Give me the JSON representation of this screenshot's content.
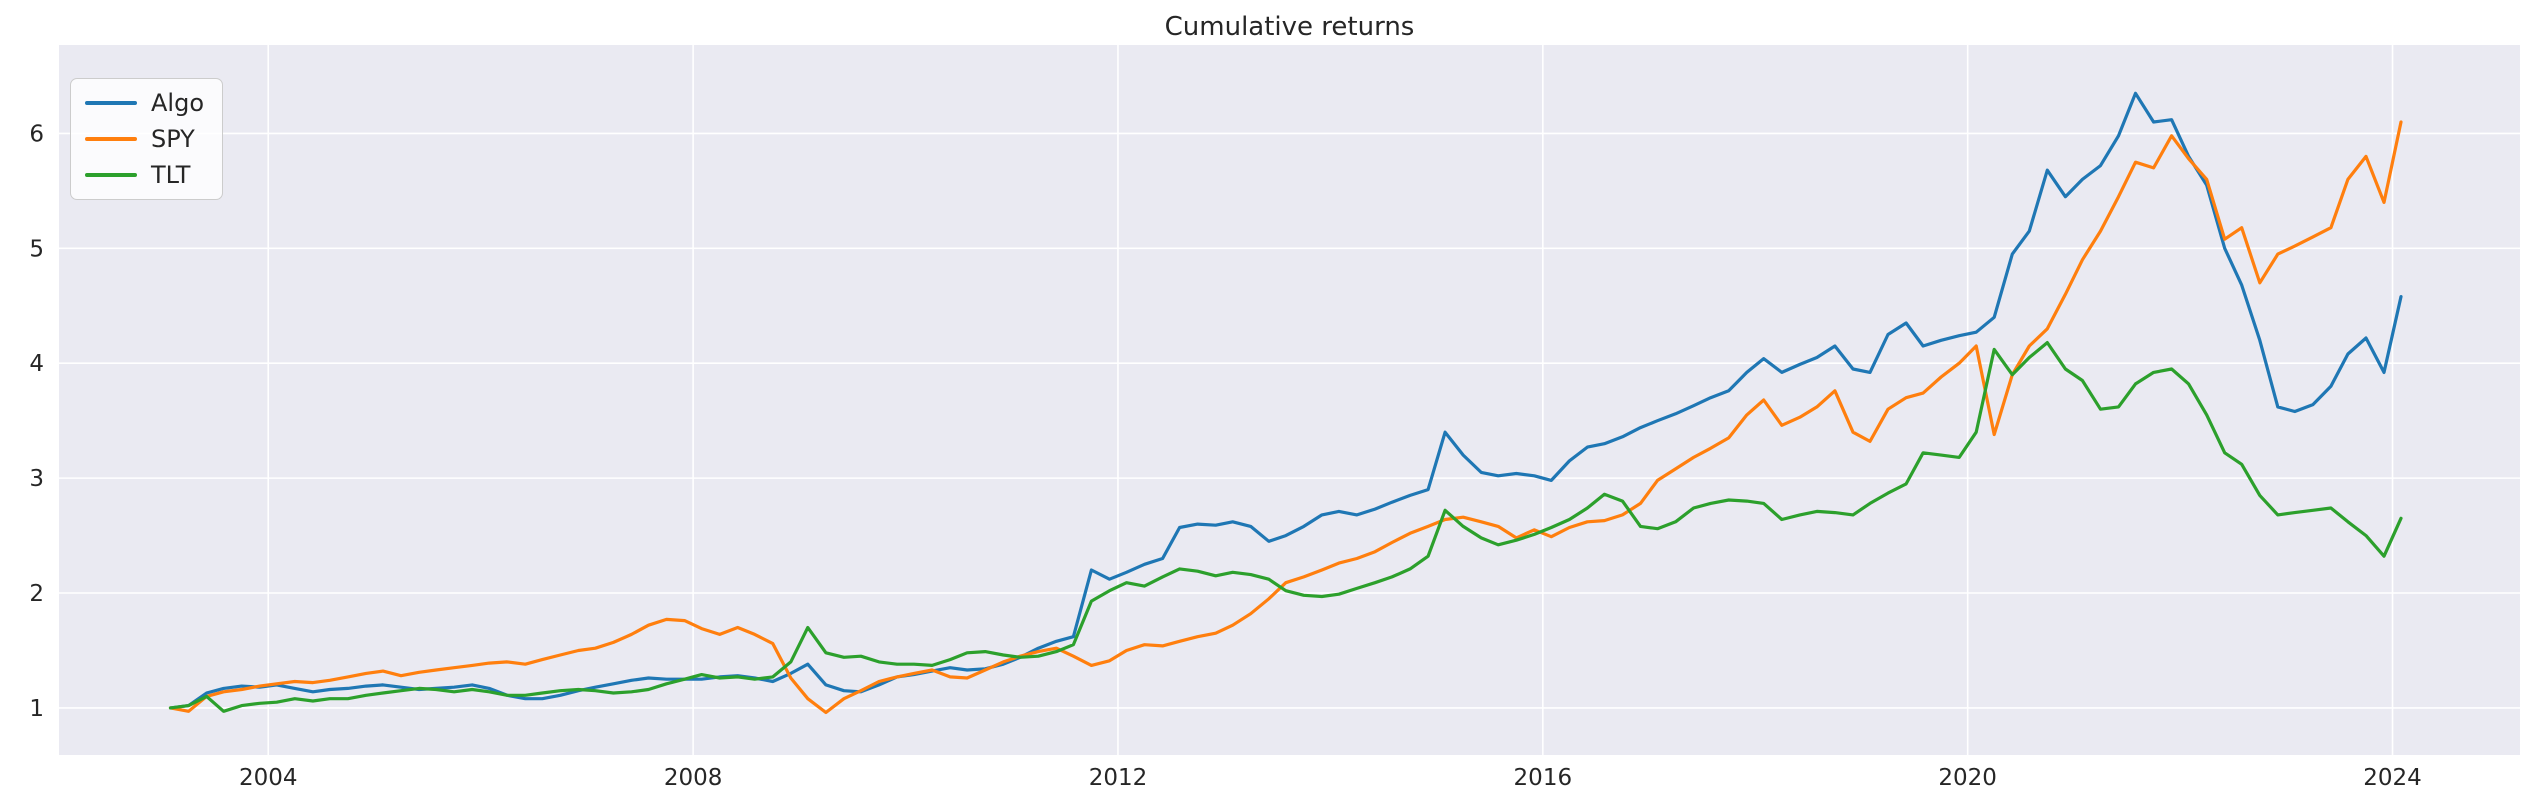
{
  "title": "Cumulative returns",
  "colors": {
    "figure_background": "#ffffff",
    "axes_background": "#eaeaf2",
    "grid": "#ffffff",
    "text": "#262626",
    "legend_border": "#cccccc",
    "algo": "#1f77b4",
    "spy": "#ff7f0e",
    "tlt": "#2ca02c"
  },
  "legend": {
    "position": "upper left",
    "entries": [
      {
        "label": "Algo",
        "color": "#1f77b4"
      },
      {
        "label": "SPY",
        "color": "#ff7f0e"
      },
      {
        "label": "TLT",
        "color": "#2ca02c"
      }
    ]
  },
  "chart_data": {
    "type": "line",
    "title": "Cumulative returns",
    "xlabel": "",
    "ylabel": "",
    "grid": true,
    "legend_position": "upper left",
    "xlim": [
      2002.03,
      2025.2
    ],
    "ylim": [
      0.59,
      6.77
    ],
    "x_ticks": [
      2004,
      2008,
      2012,
      2016,
      2020,
      2024
    ],
    "y_ticks": [
      1,
      2,
      3,
      4,
      5,
      6
    ],
    "x": [
      2003.08,
      2003.25,
      2003.42,
      2003.58,
      2003.75,
      2003.92,
      2004.08,
      2004.25,
      2004.42,
      2004.58,
      2004.75,
      2004.92,
      2005.08,
      2005.25,
      2005.42,
      2005.58,
      2005.75,
      2005.92,
      2006.08,
      2006.25,
      2006.42,
      2006.58,
      2006.75,
      2006.92,
      2007.08,
      2007.25,
      2007.42,
      2007.58,
      2007.75,
      2007.92,
      2008.08,
      2008.25,
      2008.42,
      2008.58,
      2008.75,
      2008.92,
      2009.08,
      2009.25,
      2009.42,
      2009.58,
      2009.75,
      2009.92,
      2010.08,
      2010.25,
      2010.42,
      2010.58,
      2010.75,
      2010.92,
      2011.08,
      2011.25,
      2011.42,
      2011.58,
      2011.75,
      2011.92,
      2012.08,
      2012.25,
      2012.42,
      2012.58,
      2012.75,
      2012.92,
      2013.08,
      2013.25,
      2013.42,
      2013.58,
      2013.75,
      2013.92,
      2014.08,
      2014.25,
      2014.42,
      2014.58,
      2014.75,
      2014.92,
      2015.08,
      2015.25,
      2015.42,
      2015.58,
      2015.75,
      2015.92,
      2016.08,
      2016.25,
      2016.42,
      2016.58,
      2016.75,
      2016.92,
      2017.08,
      2017.25,
      2017.42,
      2017.58,
      2017.75,
      2017.92,
      2018.08,
      2018.25,
      2018.42,
      2018.58,
      2018.75,
      2018.92,
      2019.08,
      2019.25,
      2019.42,
      2019.58,
      2019.75,
      2019.92,
      2020.08,
      2020.25,
      2020.42,
      2020.58,
      2020.75,
      2020.92,
      2021.08,
      2021.25,
      2021.42,
      2021.58,
      2021.75,
      2021.92,
      2022.08,
      2022.25,
      2022.42,
      2022.58,
      2022.75,
      2022.92,
      2023.08,
      2023.25,
      2023.42,
      2023.58,
      2023.75,
      2023.92,
      2024.08
    ],
    "series": [
      {
        "name": "Algo",
        "color": "#1f77b4",
        "values": [
          1.0,
          1.02,
          1.13,
          1.17,
          1.19,
          1.18,
          1.2,
          1.17,
          1.14,
          1.16,
          1.17,
          1.19,
          1.2,
          1.18,
          1.16,
          1.17,
          1.18,
          1.2,
          1.17,
          1.11,
          1.08,
          1.08,
          1.11,
          1.15,
          1.18,
          1.21,
          1.24,
          1.26,
          1.25,
          1.25,
          1.25,
          1.27,
          1.28,
          1.26,
          1.23,
          1.3,
          1.38,
          1.2,
          1.15,
          1.14,
          1.2,
          1.27,
          1.29,
          1.32,
          1.35,
          1.33,
          1.34,
          1.38,
          1.44,
          1.52,
          1.58,
          1.62,
          2.2,
          2.12,
          2.18,
          2.25,
          2.3,
          2.57,
          2.6,
          2.59,
          2.62,
          2.58,
          2.45,
          2.5,
          2.58,
          2.68,
          2.71,
          2.68,
          2.73,
          2.79,
          2.85,
          2.9,
          3.4,
          3.2,
          3.05,
          3.02,
          3.04,
          3.02,
          2.98,
          3.15,
          3.27,
          3.3,
          3.36,
          3.44,
          3.5,
          3.56,
          3.63,
          3.7,
          3.76,
          3.92,
          4.04,
          3.92,
          3.99,
          4.05,
          4.15,
          3.95,
          3.92,
          4.25,
          4.35,
          4.15,
          4.2,
          4.24,
          4.27,
          4.4,
          4.95,
          5.15,
          5.68,
          5.45,
          5.6,
          5.72,
          5.98,
          6.35,
          6.1,
          6.12,
          5.8,
          5.55,
          5.0,
          4.68,
          4.2,
          3.62,
          3.58,
          3.64,
          3.8,
          4.08,
          4.22,
          3.92,
          4.58
        ]
      },
      {
        "name": "SPY",
        "color": "#ff7f0e",
        "values": [
          1.0,
          0.97,
          1.1,
          1.14,
          1.16,
          1.19,
          1.21,
          1.23,
          1.22,
          1.24,
          1.27,
          1.3,
          1.32,
          1.28,
          1.31,
          1.33,
          1.35,
          1.37,
          1.39,
          1.4,
          1.38,
          1.42,
          1.46,
          1.5,
          1.52,
          1.57,
          1.64,
          1.72,
          1.77,
          1.76,
          1.69,
          1.64,
          1.7,
          1.64,
          1.56,
          1.26,
          1.08,
          0.96,
          1.08,
          1.15,
          1.23,
          1.27,
          1.3,
          1.33,
          1.27,
          1.26,
          1.33,
          1.4,
          1.45,
          1.49,
          1.52,
          1.45,
          1.37,
          1.41,
          1.5,
          1.55,
          1.54,
          1.58,
          1.62,
          1.65,
          1.72,
          1.82,
          1.95,
          2.09,
          2.14,
          2.2,
          2.26,
          2.3,
          2.36,
          2.44,
          2.52,
          2.58,
          2.64,
          2.66,
          2.62,
          2.58,
          2.48,
          2.55,
          2.49,
          2.57,
          2.62,
          2.63,
          2.68,
          2.78,
          2.98,
          3.08,
          3.18,
          3.26,
          3.35,
          3.55,
          3.68,
          3.46,
          3.53,
          3.62,
          3.76,
          3.4,
          3.32,
          3.6,
          3.7,
          3.74,
          3.88,
          4.0,
          4.15,
          3.38,
          3.9,
          4.15,
          4.3,
          4.6,
          4.9,
          5.15,
          5.45,
          5.75,
          5.7,
          5.98,
          5.78,
          5.6,
          5.08,
          5.18,
          4.7,
          4.95,
          5.02,
          5.1,
          5.18,
          5.6,
          5.8,
          5.4,
          6.1
        ]
      },
      {
        "name": "TLT",
        "color": "#2ca02c",
        "values": [
          1.0,
          1.02,
          1.1,
          0.97,
          1.02,
          1.04,
          1.05,
          1.08,
          1.06,
          1.08,
          1.08,
          1.11,
          1.13,
          1.15,
          1.17,
          1.16,
          1.14,
          1.16,
          1.14,
          1.11,
          1.11,
          1.13,
          1.15,
          1.16,
          1.15,
          1.13,
          1.14,
          1.16,
          1.21,
          1.25,
          1.29,
          1.26,
          1.27,
          1.25,
          1.27,
          1.4,
          1.7,
          1.48,
          1.44,
          1.45,
          1.4,
          1.38,
          1.38,
          1.37,
          1.42,
          1.48,
          1.49,
          1.46,
          1.44,
          1.45,
          1.49,
          1.55,
          1.93,
          2.02,
          2.09,
          2.06,
          2.14,
          2.21,
          2.19,
          2.15,
          2.18,
          2.16,
          2.12,
          2.02,
          1.98,
          1.97,
          1.99,
          2.04,
          2.09,
          2.14,
          2.21,
          2.32,
          2.72,
          2.58,
          2.48,
          2.42,
          2.46,
          2.51,
          2.57,
          2.64,
          2.74,
          2.86,
          2.8,
          2.58,
          2.56,
          2.62,
          2.74,
          2.78,
          2.81,
          2.8,
          2.78,
          2.64,
          2.68,
          2.71,
          2.7,
          2.68,
          2.78,
          2.87,
          2.95,
          3.22,
          3.2,
          3.18,
          3.4,
          4.12,
          3.9,
          4.05,
          4.18,
          3.95,
          3.85,
          3.6,
          3.62,
          3.82,
          3.92,
          3.95,
          3.82,
          3.55,
          3.22,
          3.12,
          2.85,
          2.68,
          2.7,
          2.72,
          2.74,
          2.62,
          2.5,
          2.32,
          2.65
        ]
      }
    ]
  }
}
